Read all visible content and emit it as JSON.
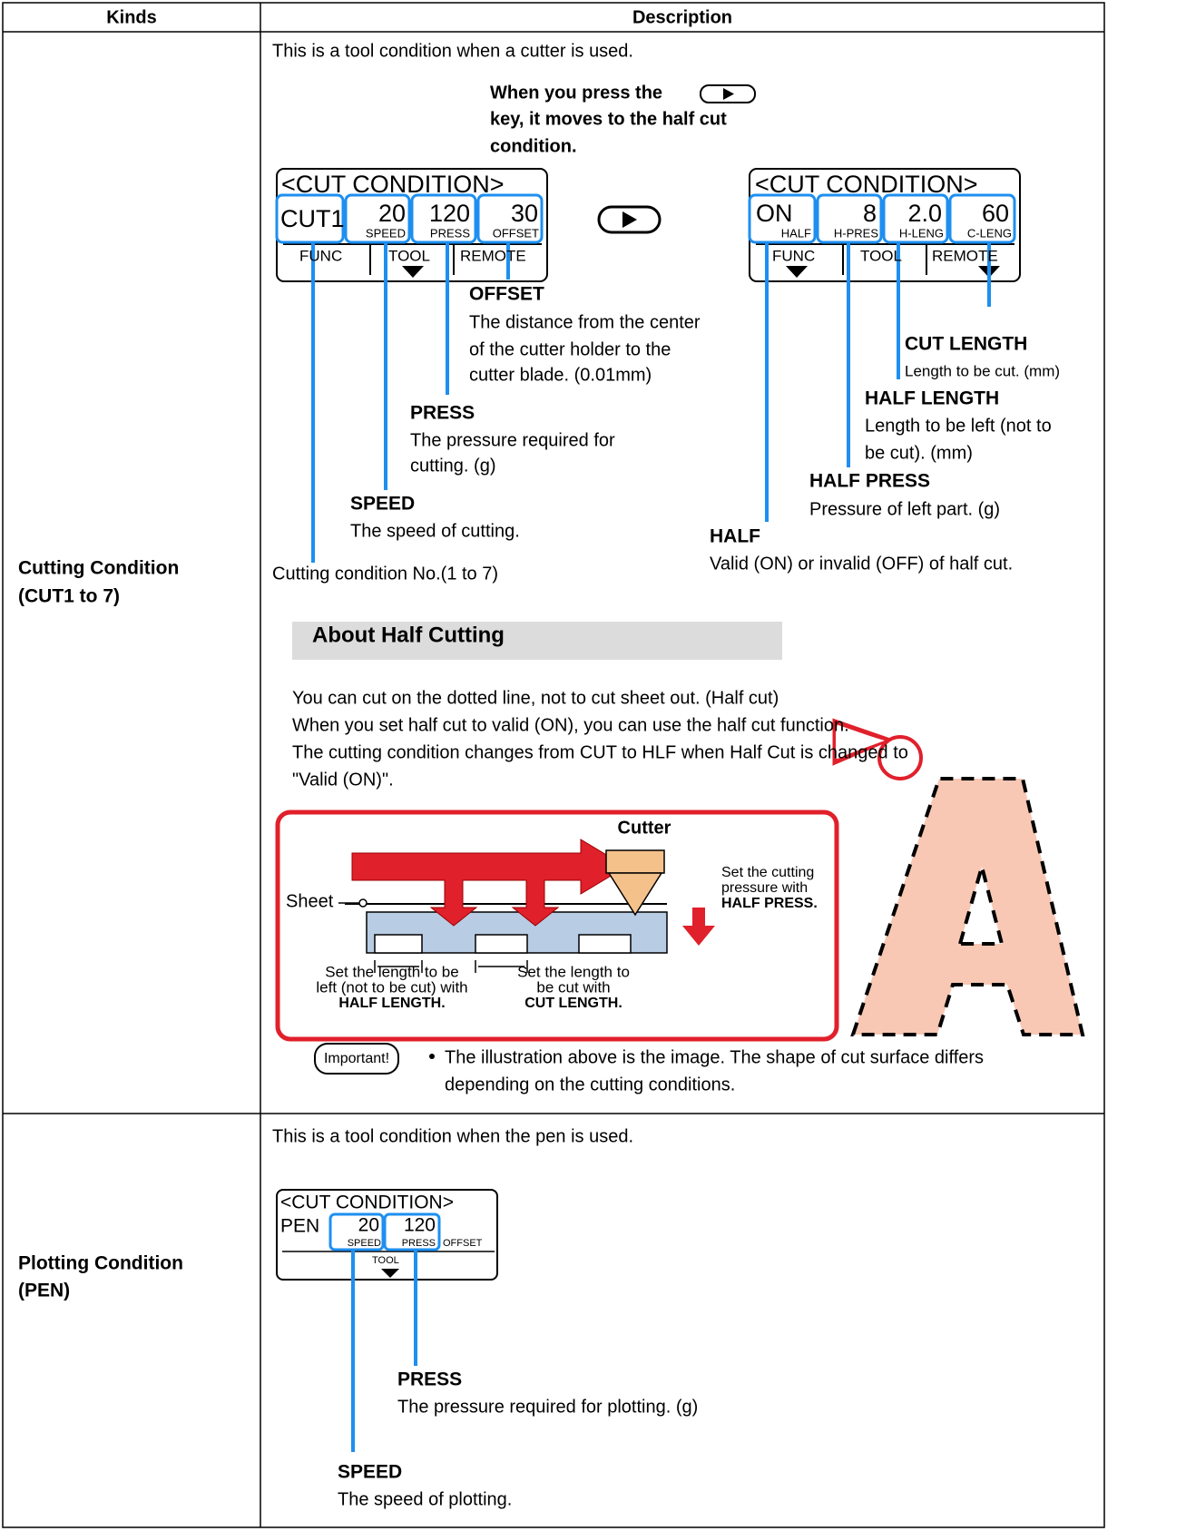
{
  "table": {
    "headers": [
      "Kinds",
      "Description"
    ],
    "rows": [
      {
        "kind": [
          "Cutting Condition",
          "(CUT1 to 7)"
        ],
        "intro": "This is a tool condition when a cutter is used.",
        "key_note": [
          "When you press the",
          "key, it moves to the half cut",
          "condition."
        ],
        "lcd_before": {
          "title": "<CUT CONDITION>",
          "fields": [
            {
              "value": "CUT1"
            },
            {
              "value": "20",
              "label": "SPEED"
            },
            {
              "value": "120",
              "label": "PRESS"
            },
            {
              "value": "30",
              "label": "OFFSET"
            }
          ],
          "menu": [
            "FUNC",
            "TOOL",
            "REMOTE"
          ]
        },
        "lcd_after": {
          "title": "<CUT CONDITION>",
          "fields": [
            {
              "value": "ON",
              "label": "HALF"
            },
            {
              "value": "8",
              "label": "H-PRES"
            },
            {
              "value": "2.0",
              "label": "H-LENG"
            },
            {
              "value": "60",
              "label": "C-LENG"
            }
          ],
          "menu": [
            "FUNC",
            "TOOL",
            "REMOTE"
          ]
        },
        "callouts_before": [
          {
            "title": "OFFSET",
            "text": [
              "The distance from the center",
              "of the cutter holder to the",
              "cutter blade. (0.01mm)"
            ]
          },
          {
            "title": "PRESS",
            "text": [
              "The pressure required for",
              "cutting. (g)"
            ]
          },
          {
            "title": "SPEED",
            "text": [
              "The speed of cutting."
            ]
          }
        ],
        "number_note": "Cutting condition No.(1 to 7)",
        "callouts_after": [
          {
            "title": "CUT LENGTH",
            "text": [
              "Length to be cut. (mm)"
            ]
          },
          {
            "title": "HALF LENGTH",
            "text": [
              "Length to be left (not to",
              "be cut). (mm)"
            ]
          },
          {
            "title": "HALF PRESS",
            "text": [
              "Pressure of left part. (g)"
            ]
          },
          {
            "title": "HALF",
            "text": [
              "Valid (ON) or invalid (OFF) of half cut."
            ]
          }
        ],
        "section_title": "About Half Cutting",
        "paragraph": [
          "You can cut on the dotted line, not to cut sheet out. (Half cut)",
          "When you set half cut to valid (ON), you can use the half cut function.",
          "The cutting condition changes from CUT to HLF when Half Cut is changed to",
          "\"Valid (ON)\"."
        ],
        "illustration": {
          "cutter": "Cutter",
          "sheet": "Sheet",
          "pressure_note": [
            "Set the cutting",
            "pressure with",
            "HALF PRESS."
          ],
          "half_length_note": [
            "Set the length to be",
            "left (not to be cut) with",
            "HALF LENGTH."
          ],
          "cut_length_note": [
            "Set the length to",
            "be cut with",
            "CUT LENGTH."
          ]
        },
        "important": {
          "badge": "Important!",
          "text": [
            "The illustration above is the image. The shape of cut surface differs",
            "depending on the cutting conditions."
          ]
        }
      },
      {
        "kind": [
          "Plotting Condition",
          "(PEN)"
        ],
        "intro": "This is a tool condition when the pen is used.",
        "lcd": {
          "title": "<CUT CONDITION>",
          "fields": [
            {
              "value": "PEN"
            },
            {
              "value": "20",
              "label": "SPEED"
            },
            {
              "value": "120",
              "label": "PRESS"
            },
            {
              "label": "OFFSET"
            }
          ],
          "menu": [
            "TOOL"
          ]
        },
        "callouts": [
          {
            "title": "PRESS",
            "text": [
              "The pressure required for plotting. (g)"
            ]
          },
          {
            "title": "SPEED",
            "text": [
              "The speed of plotting."
            ]
          }
        ]
      }
    ]
  }
}
